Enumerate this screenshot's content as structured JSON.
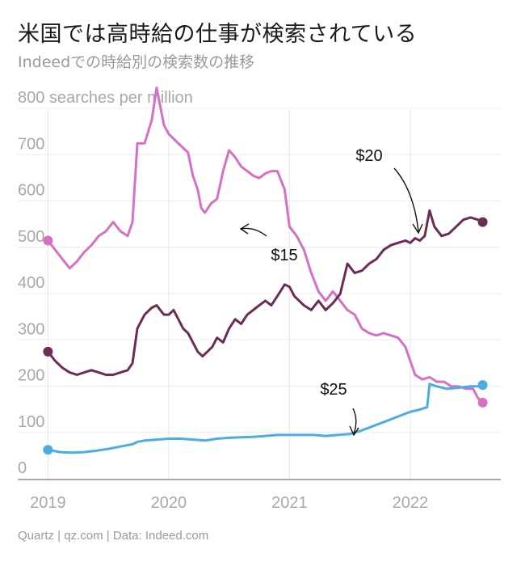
{
  "title": "米国では高時給の仕事が検索されている",
  "subtitle": "Indeedでの時給別の検索数の推移",
  "footer": "Quartz | qz.com | Data: Indeed.com",
  "chart_data": {
    "type": "line",
    "title": "米国では高時給の仕事が検索されている",
    "subtitle": "Indeedでの時給別の検索数の推移",
    "ylabel": "800 searches per million",
    "xlabel": "",
    "ylim": [
      0,
      800
    ],
    "xlim": [
      2018.75,
      2022.75
    ],
    "y_ticks": [
      0,
      100,
      200,
      300,
      400,
      500,
      600,
      700,
      800
    ],
    "y_tick_labels": [
      "0",
      "100",
      "200",
      "300",
      "400",
      "500",
      "600",
      "700",
      "800 searches per million"
    ],
    "x_ticks": [
      2019,
      2020,
      2021,
      2022
    ],
    "x_tick_labels": [
      "2019",
      "2020",
      "2021",
      "2022"
    ],
    "grid": true,
    "legend": "none",
    "series": [
      {
        "name": "$15",
        "color": "#d76fc4",
        "points": [
          [
            2019.0,
            490
          ],
          [
            2019.06,
            470
          ],
          [
            2019.12,
            450
          ],
          [
            2019.18,
            430
          ],
          [
            2019.24,
            445
          ],
          [
            2019.3,
            465
          ],
          [
            2019.36,
            480
          ],
          [
            2019.42,
            500
          ],
          [
            2019.48,
            510
          ],
          [
            2019.54,
            530
          ],
          [
            2019.6,
            510
          ],
          [
            2019.66,
            500
          ],
          [
            2019.7,
            530
          ],
          [
            2019.74,
            700
          ],
          [
            2019.8,
            700
          ],
          [
            2019.86,
            750
          ],
          [
            2019.9,
            820
          ],
          [
            2019.93,
            780
          ],
          [
            2019.96,
            740
          ],
          [
            2020.0,
            720
          ],
          [
            2020.04,
            710
          ],
          [
            2020.08,
            700
          ],
          [
            2020.12,
            690
          ],
          [
            2020.16,
            680
          ],
          [
            2020.2,
            630
          ],
          [
            2020.24,
            600
          ],
          [
            2020.27,
            560
          ],
          [
            2020.3,
            550
          ],
          [
            2020.35,
            570
          ],
          [
            2020.4,
            580
          ],
          [
            2020.45,
            640
          ],
          [
            2020.5,
            685
          ],
          [
            2020.55,
            670
          ],
          [
            2020.6,
            650
          ],
          [
            2020.65,
            640
          ],
          [
            2020.7,
            630
          ],
          [
            2020.75,
            625
          ],
          [
            2020.8,
            635
          ],
          [
            2020.85,
            640
          ],
          [
            2020.9,
            640
          ],
          [
            2020.96,
            600
          ],
          [
            2021.0,
            520
          ],
          [
            2021.06,
            500
          ],
          [
            2021.12,
            470
          ],
          [
            2021.18,
            420
          ],
          [
            2021.24,
            380
          ],
          [
            2021.3,
            360
          ],
          [
            2021.36,
            380
          ],
          [
            2021.42,
            360
          ],
          [
            2021.48,
            340
          ],
          [
            2021.54,
            330
          ],
          [
            2021.6,
            300
          ],
          [
            2021.66,
            290
          ],
          [
            2021.72,
            285
          ],
          [
            2021.78,
            290
          ],
          [
            2021.84,
            285
          ],
          [
            2021.9,
            280
          ],
          [
            2021.96,
            260
          ],
          [
            2022.0,
            230
          ],
          [
            2022.04,
            200
          ],
          [
            2022.1,
            190
          ],
          [
            2022.16,
            195
          ],
          [
            2022.22,
            185
          ],
          [
            2022.28,
            185
          ],
          [
            2022.34,
            175
          ],
          [
            2022.4,
            175
          ],
          [
            2022.46,
            170
          ],
          [
            2022.52,
            170
          ],
          [
            2022.56,
            150
          ],
          [
            2022.6,
            140
          ]
        ]
      },
      {
        "name": "$20",
        "color": "#6b2c55",
        "points": [
          [
            2019.0,
            250
          ],
          [
            2019.06,
            230
          ],
          [
            2019.12,
            215
          ],
          [
            2019.18,
            205
          ],
          [
            2019.24,
            200
          ],
          [
            2019.3,
            205
          ],
          [
            2019.36,
            210
          ],
          [
            2019.42,
            205
          ],
          [
            2019.48,
            200
          ],
          [
            2019.54,
            200
          ],
          [
            2019.6,
            205
          ],
          [
            2019.66,
            210
          ],
          [
            2019.7,
            225
          ],
          [
            2019.74,
            300
          ],
          [
            2019.8,
            330
          ],
          [
            2019.86,
            345
          ],
          [
            2019.9,
            350
          ],
          [
            2019.96,
            330
          ],
          [
            2020.0,
            330
          ],
          [
            2020.04,
            340
          ],
          [
            2020.08,
            320
          ],
          [
            2020.12,
            300
          ],
          [
            2020.16,
            290
          ],
          [
            2020.2,
            270
          ],
          [
            2020.24,
            250
          ],
          [
            2020.28,
            240
          ],
          [
            2020.32,
            250
          ],
          [
            2020.36,
            260
          ],
          [
            2020.4,
            280
          ],
          [
            2020.45,
            270
          ],
          [
            2020.5,
            300
          ],
          [
            2020.55,
            320
          ],
          [
            2020.6,
            310
          ],
          [
            2020.65,
            330
          ],
          [
            2020.7,
            340
          ],
          [
            2020.75,
            350
          ],
          [
            2020.8,
            360
          ],
          [
            2020.85,
            350
          ],
          [
            2020.9,
            370
          ],
          [
            2020.96,
            395
          ],
          [
            2021.0,
            390
          ],
          [
            2021.04,
            370
          ],
          [
            2021.08,
            360
          ],
          [
            2021.12,
            350
          ],
          [
            2021.18,
            340
          ],
          [
            2021.24,
            360
          ],
          [
            2021.3,
            340
          ],
          [
            2021.36,
            355
          ],
          [
            2021.42,
            375
          ],
          [
            2021.48,
            440
          ],
          [
            2021.54,
            420
          ],
          [
            2021.6,
            425
          ],
          [
            2021.66,
            440
          ],
          [
            2021.72,
            450
          ],
          [
            2021.78,
            470
          ],
          [
            2021.84,
            480
          ],
          [
            2021.9,
            485
          ],
          [
            2021.96,
            490
          ],
          [
            2022.0,
            485
          ],
          [
            2022.04,
            495
          ],
          [
            2022.08,
            490
          ],
          [
            2022.12,
            500
          ],
          [
            2022.16,
            555
          ],
          [
            2022.2,
            520
          ],
          [
            2022.26,
            500
          ],
          [
            2022.32,
            505
          ],
          [
            2022.38,
            520
          ],
          [
            2022.44,
            535
          ],
          [
            2022.5,
            540
          ],
          [
            2022.56,
            535
          ],
          [
            2022.6,
            530
          ]
        ]
      },
      {
        "name": "$25",
        "color": "#4aaee0",
        "points": [
          [
            2019.0,
            38
          ],
          [
            2019.1,
            33
          ],
          [
            2019.2,
            32
          ],
          [
            2019.3,
            33
          ],
          [
            2019.4,
            36
          ],
          [
            2019.5,
            40
          ],
          [
            2019.6,
            45
          ],
          [
            2019.7,
            50
          ],
          [
            2019.74,
            55
          ],
          [
            2019.8,
            58
          ],
          [
            2019.9,
            60
          ],
          [
            2020.0,
            62
          ],
          [
            2020.1,
            62
          ],
          [
            2020.2,
            60
          ],
          [
            2020.3,
            58
          ],
          [
            2020.4,
            62
          ],
          [
            2020.5,
            64
          ],
          [
            2020.6,
            65
          ],
          [
            2020.7,
            66
          ],
          [
            2020.8,
            68
          ],
          [
            2020.9,
            70
          ],
          [
            2021.0,
            70
          ],
          [
            2021.1,
            70
          ],
          [
            2021.2,
            70
          ],
          [
            2021.3,
            68
          ],
          [
            2021.4,
            70
          ],
          [
            2021.5,
            72
          ],
          [
            2021.6,
            80
          ],
          [
            2021.7,
            90
          ],
          [
            2021.8,
            100
          ],
          [
            2021.9,
            110
          ],
          [
            2022.0,
            120
          ],
          [
            2022.08,
            125
          ],
          [
            2022.14,
            130
          ],
          [
            2022.16,
            180
          ],
          [
            2022.22,
            175
          ],
          [
            2022.3,
            170
          ],
          [
            2022.4,
            172
          ],
          [
            2022.5,
            175
          ],
          [
            2022.56,
            175
          ],
          [
            2022.6,
            178
          ]
        ]
      }
    ],
    "annotations": [
      {
        "text": "$15",
        "target": [
          2020.3,
          550
        ]
      },
      {
        "text": "$20",
        "target": [
          2021.96,
          490
        ]
      },
      {
        "text": "$25",
        "target": [
          2021.4,
          70
        ]
      }
    ]
  }
}
